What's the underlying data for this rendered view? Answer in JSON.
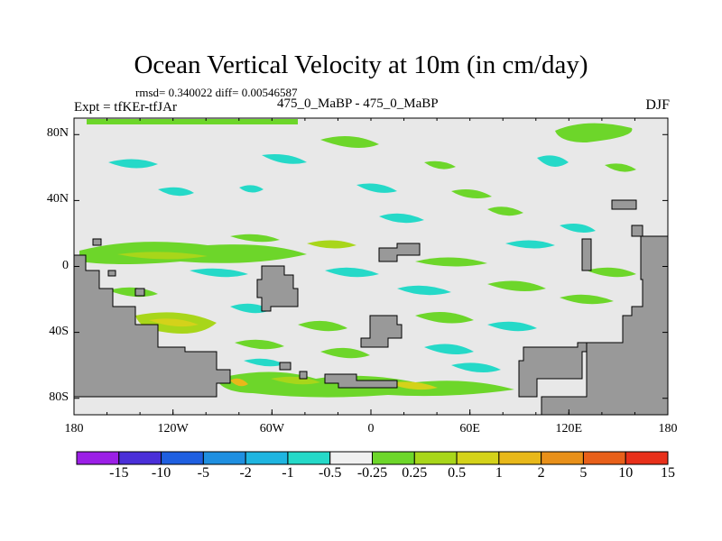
{
  "chart_data": {
    "type": "heatmap",
    "title": "Ocean Vertical Velocity at 10m (in cm/day)",
    "stats_text": "rmsd= 0.340022 diff= 0.00546587",
    "left_label": "Expt = tfKEr-tfJAr",
    "center_label": "475_0_MaBP - 475_0_MaBP",
    "right_label": "DJF",
    "x_ticks": [
      "180",
      "120W",
      "60W",
      "0",
      "60E",
      "120E",
      "180"
    ],
    "y_ticks": [
      "80N",
      "40N",
      "0",
      "40S",
      "80S"
    ],
    "x_range": [
      -180,
      180
    ],
    "y_range": [
      -90,
      90
    ],
    "colorbar_labels": [
      "-15",
      "-10",
      "-5",
      "-2",
      "-1",
      "-0.5",
      "-0.25",
      "0.25",
      "0.5",
      "1",
      "2",
      "5",
      "10",
      "15"
    ],
    "colorbar_colors": [
      "#9b1fe6",
      "#4a2fd8",
      "#1f5fe0",
      "#1f8fe0",
      "#1fb5e0",
      "#25d9c8",
      "#f0f0f0",
      "#6dd62a",
      "#a8d61a",
      "#d4d21a",
      "#e8b81a",
      "#e8901a",
      "#e8601a",
      "#e8301a"
    ],
    "land_color": "#999999",
    "background_color": "#e8e8e8"
  }
}
